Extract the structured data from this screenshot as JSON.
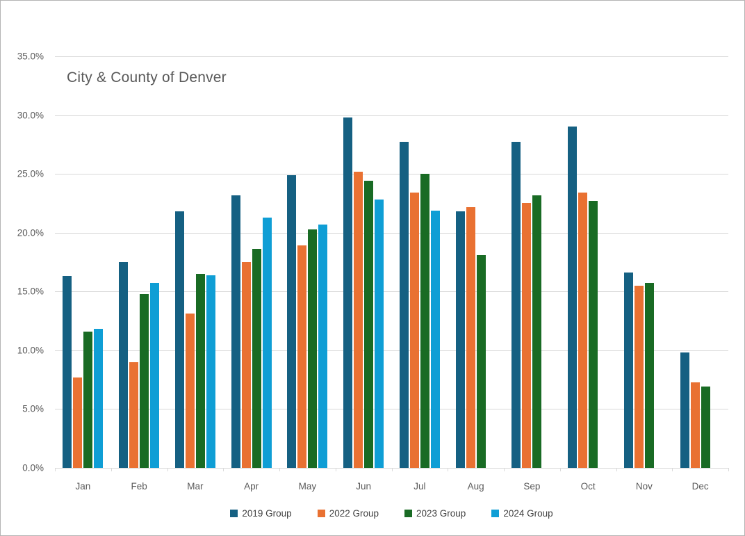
{
  "chart_data": {
    "type": "bar",
    "title": "City & County of Denver",
    "categories": [
      "Jan",
      "Feb",
      "Mar",
      "Apr",
      "May",
      "Jun",
      "Jul",
      "Aug",
      "Sep",
      "Oct",
      "Nov",
      "Dec"
    ],
    "series": [
      {
        "name": "2019 Group",
        "color": "#156082",
        "values": [
          16.3,
          17.5,
          21.8,
          23.2,
          24.9,
          29.8,
          27.7,
          21.8,
          27.7,
          29.0,
          16.6,
          9.8
        ]
      },
      {
        "name": "2022 Group",
        "color": "#E97132",
        "values": [
          7.7,
          9.0,
          13.1,
          17.5,
          18.9,
          25.2,
          23.4,
          22.2,
          22.5,
          23.4,
          15.5,
          7.3
        ]
      },
      {
        "name": "2023 Group",
        "color": "#196B24",
        "values": [
          11.6,
          14.8,
          16.5,
          18.6,
          20.3,
          24.4,
          25.0,
          18.1,
          23.2,
          22.7,
          15.7,
          6.9
        ]
      },
      {
        "name": "2024 Group",
        "color": "#0F9ED5",
        "values": [
          11.8,
          15.7,
          16.4,
          21.3,
          20.7,
          22.8,
          21.9,
          null,
          null,
          null,
          null,
          null
        ]
      }
    ],
    "y_axis": {
      "min": 0,
      "max": 35,
      "step": 5,
      "tick_labels": [
        "0.0%",
        "5.0%",
        "10.0%",
        "15.0%",
        "20.0%",
        "25.0%",
        "30.0%",
        "35.0%"
      ]
    },
    "x_axis": {
      "tick_labels": [
        "Jan",
        "Feb",
        "Mar",
        "Apr",
        "May",
        "Jun",
        "Jul",
        "Aug",
        "Sep",
        "Oct",
        "Nov",
        "Dec"
      ]
    },
    "legend": {
      "position": "bottom",
      "items": [
        "2019 Group",
        "2022 Group",
        "2023 Group",
        "2024 Group"
      ]
    },
    "grid": true,
    "gridline_color": "#D9D9D9",
    "text_color": "#595959"
  }
}
